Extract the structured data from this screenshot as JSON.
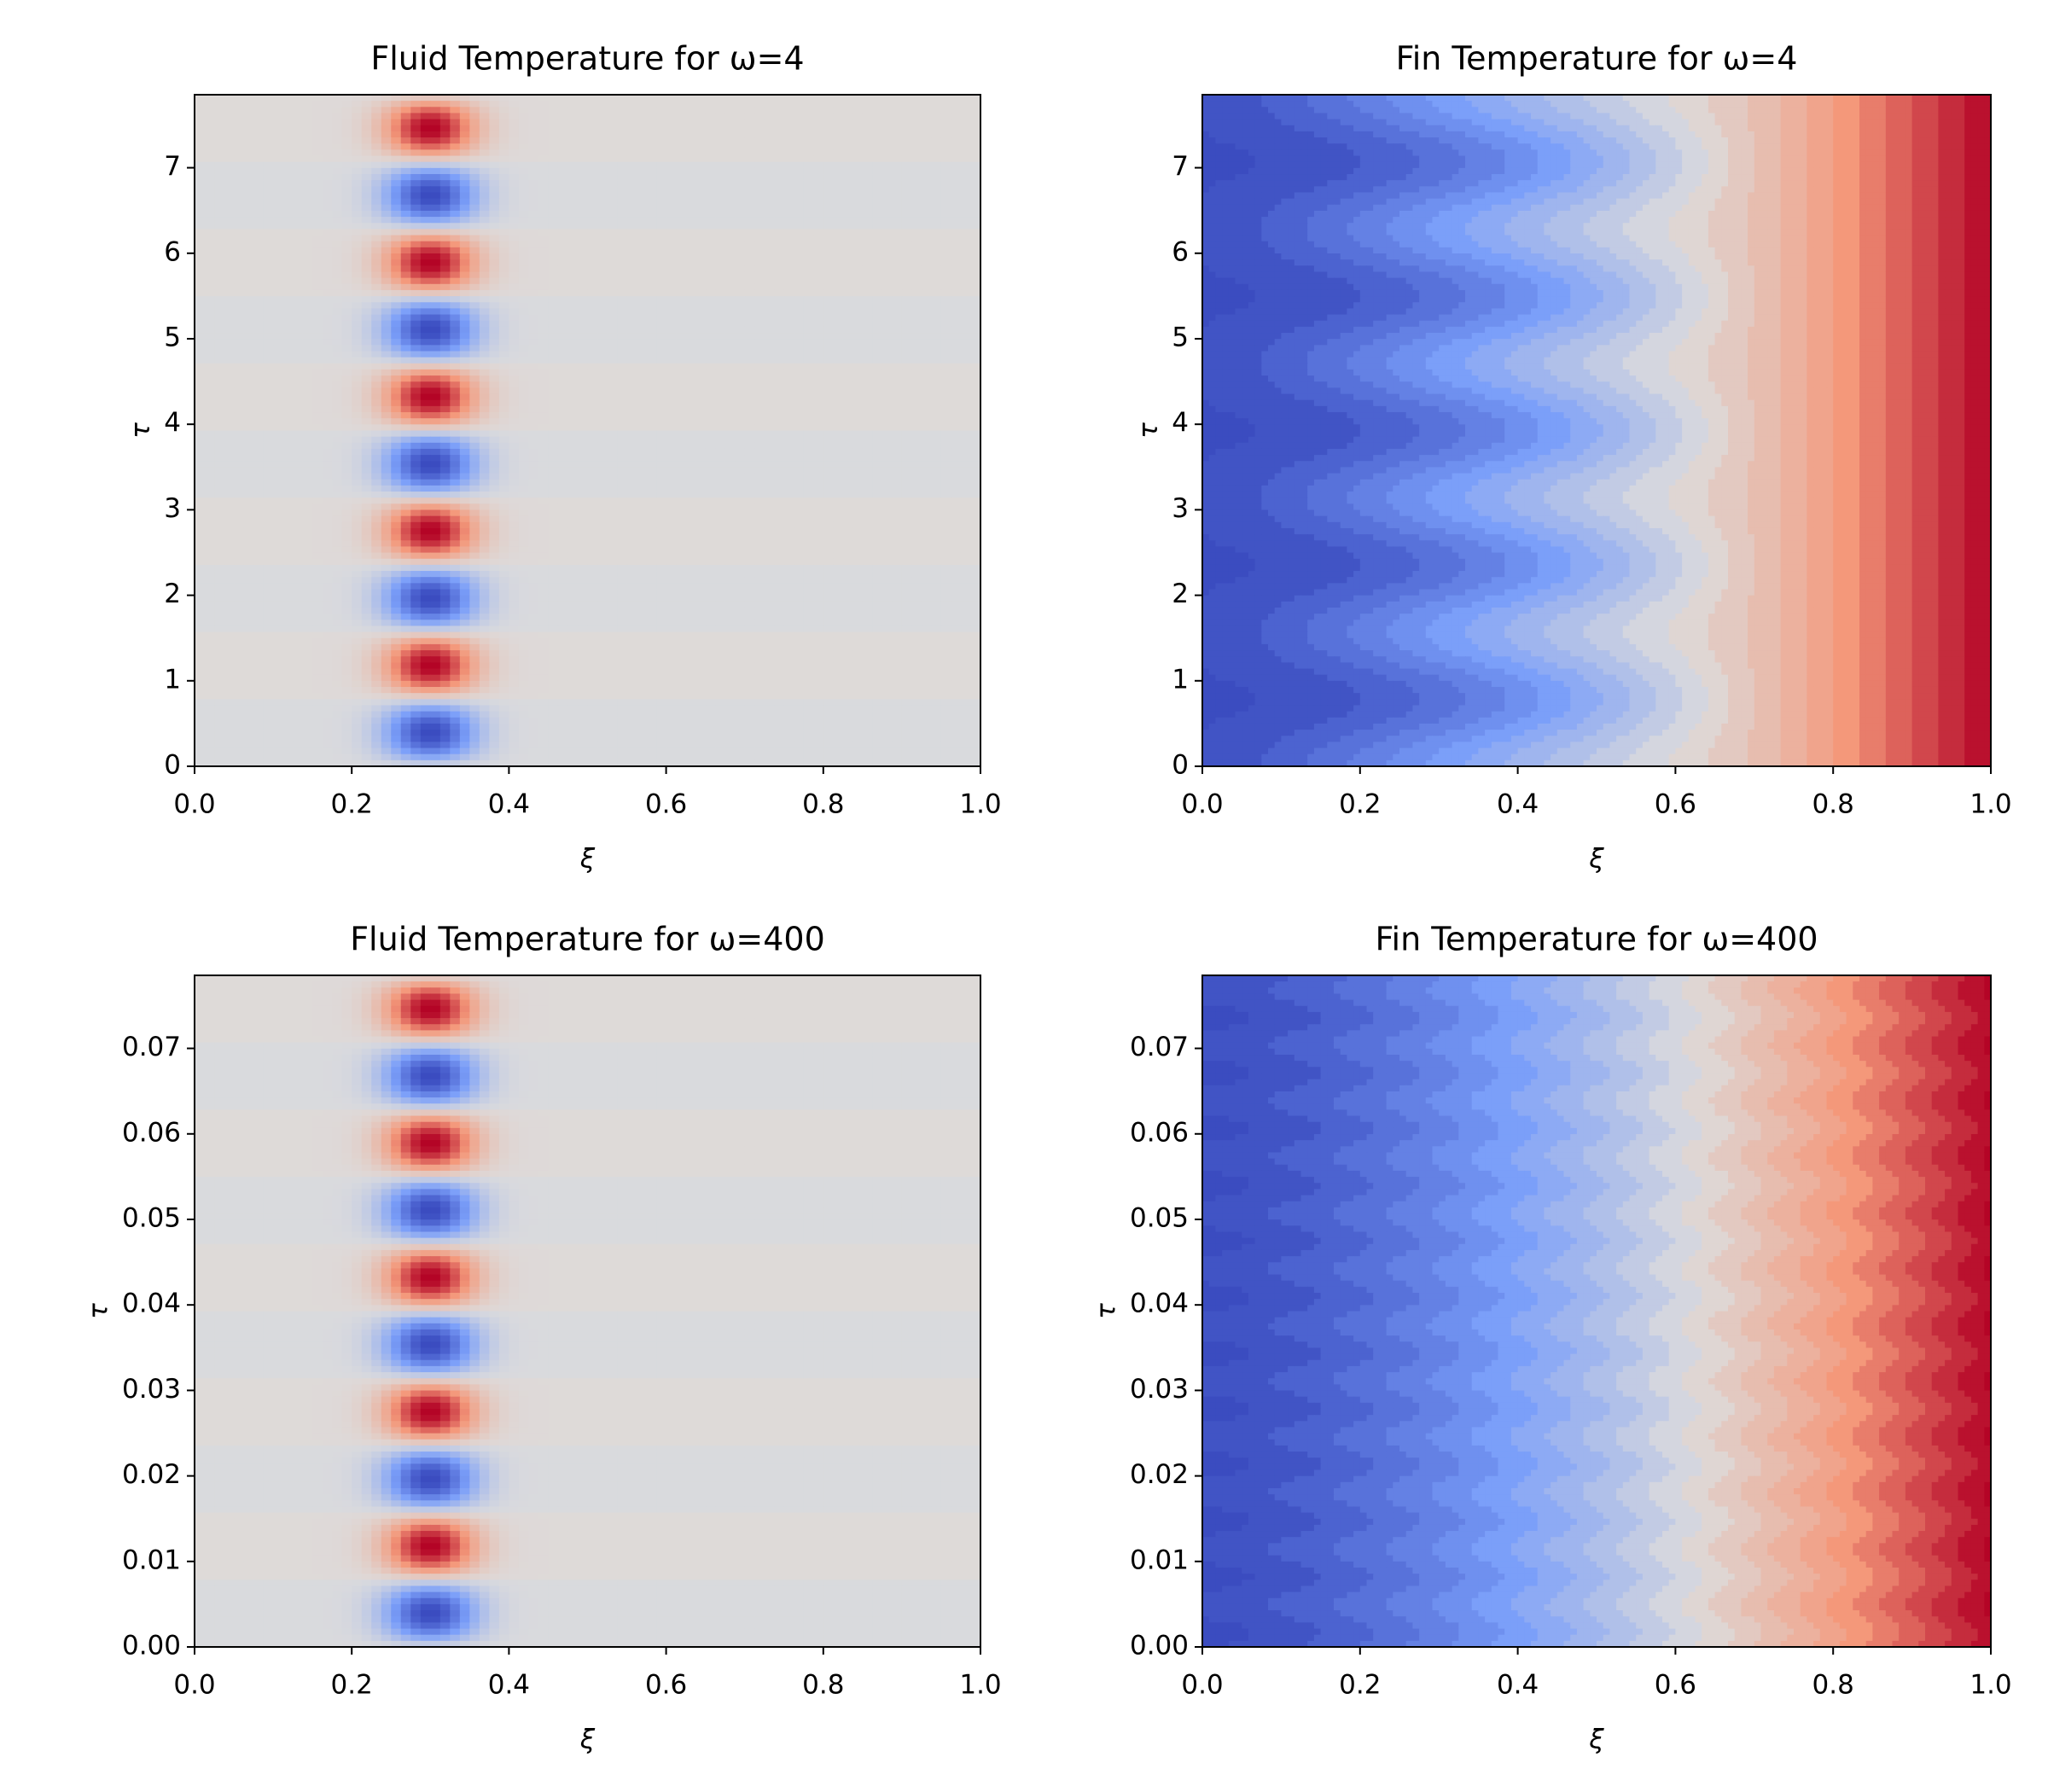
{
  "chart_data": [
    {
      "type": "contourf",
      "title": "Fluid Temperature for ω=4",
      "xlabel": "ξ",
      "ylabel": "τ",
      "colormap": "coolwarm",
      "xlim": [
        0,
        1
      ],
      "ylim": [
        0,
        7.854
      ],
      "xticks": [
        {
          "value": 0,
          "label": "0.0"
        },
        0.2,
        0.4,
        0.6,
        0.8,
        {
          "value": 1,
          "label": "1.0"
        }
      ],
      "yticks": [
        0,
        1,
        2,
        3,
        4,
        5,
        6,
        7
      ]
    },
    {
      "type": "contourf",
      "title": "Fin Temperature for ω=4",
      "xlabel": "ξ",
      "ylabel": "τ",
      "colormap": "coolwarm",
      "xlim": [
        0,
        1
      ],
      "ylim": [
        0,
        7.854
      ],
      "xticks": [
        {
          "value": 0,
          "label": "0.0"
        },
        0.2,
        0.4,
        0.6,
        0.8,
        {
          "value": 1,
          "label": "1.0"
        }
      ],
      "yticks": [
        0,
        1,
        2,
        3,
        4,
        5,
        6,
        7
      ]
    },
    {
      "type": "contourf",
      "title": "Fluid Temperature for ω=400",
      "xlabel": "ξ",
      "ylabel": "τ",
      "colormap": "coolwarm",
      "xlim": [
        0,
        1
      ],
      "ylim": [
        0,
        0.07854
      ],
      "xticks": [
        {
          "value": 0,
          "label": "0.0"
        },
        0.2,
        0.4,
        0.6,
        0.8,
        {
          "value": 1,
          "label": "1.0"
        }
      ],
      "yticks": [
        {
          "value": 0,
          "label": "0.00"
        },
        0.01,
        0.02,
        0.03,
        0.04,
        0.05,
        0.06,
        0.07
      ]
    },
    {
      "type": "contourf",
      "title": "Fin Temperature for ω=400",
      "xlabel": "ξ",
      "ylabel": "τ",
      "colormap": "coolwarm",
      "xlim": [
        0,
        1
      ],
      "ylim": [
        0,
        0.07854
      ],
      "xticks": [
        {
          "value": 0,
          "label": "0.0"
        },
        0.2,
        0.4,
        0.6,
        0.8,
        {
          "value": 1,
          "label": "1.0"
        }
      ],
      "yticks": [
        {
          "value": 0,
          "label": "0.00"
        },
        0.01,
        0.02,
        0.03,
        0.04,
        0.05,
        0.06,
        0.07
      ]
    }
  ]
}
